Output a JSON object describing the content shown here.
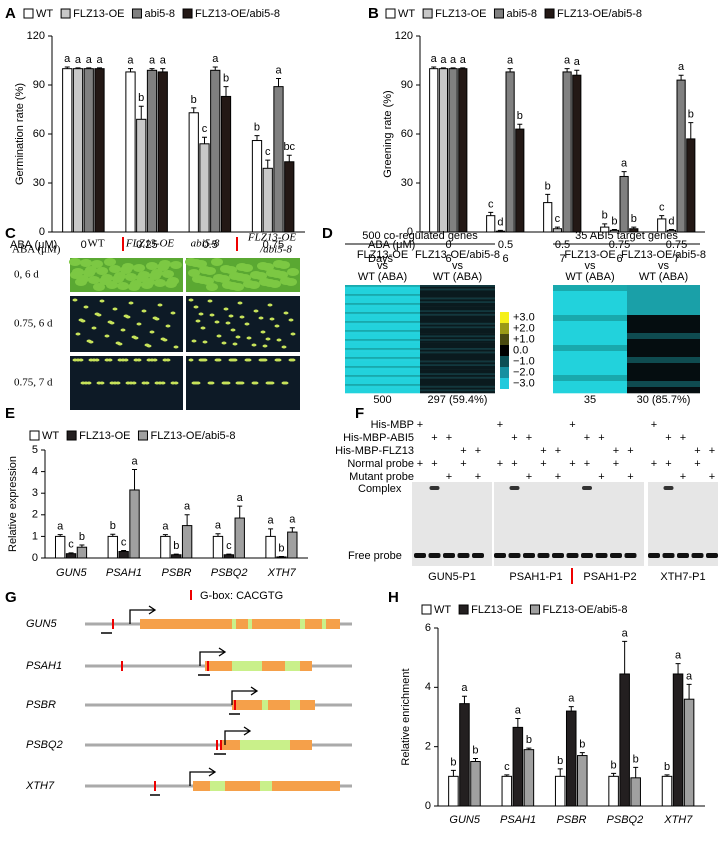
{
  "chart_data": [
    {
      "panel": "A",
      "type": "bar",
      "ylabel": "Germination rate (%)",
      "xlabel": "ABA (μM)",
      "categories": [
        "0",
        "0.25",
        "0.5",
        "0.75"
      ],
      "ylim": [
        0,
        120
      ],
      "yticks": [
        0,
        30,
        60,
        90,
        120
      ],
      "series": [
        {
          "name": "WT",
          "color": "#ffffff",
          "values": [
            100,
            98,
            73,
            56
          ],
          "errors": [
            1,
            2,
            3,
            3
          ],
          "letters": [
            "a",
            "a",
            "b",
            "b"
          ]
        },
        {
          "name": "FLZ13-OE",
          "color": "#c8c8c8",
          "values": [
            100,
            69,
            54,
            39
          ],
          "errors": [
            0.5,
            8,
            4,
            5
          ],
          "letters": [
            "a",
            "b",
            "c",
            "c"
          ]
        },
        {
          "name": "abi5-8",
          "color": "#808080",
          "values": [
            100,
            99,
            99,
            89
          ],
          "errors": [
            0.5,
            1,
            2,
            5
          ],
          "letters": [
            "a",
            "a",
            "a",
            "a"
          ]
        },
        {
          "name": "FLZ13-OE/abi5-8",
          "color": "#231815",
          "values": [
            100,
            98,
            83,
            43
          ],
          "errors": [
            0.5,
            2,
            6,
            4
          ],
          "letters": [
            "a",
            "a",
            "b",
            "bc"
          ]
        }
      ]
    },
    {
      "panel": "B",
      "type": "bar",
      "ylabel": "Greening rate (%)",
      "xlabel": "ABA (μM)",
      "xlabel2": "Days",
      "categories": [
        "0",
        "0.5",
        "0.5",
        "0.75",
        "0.75"
      ],
      "categories2": [
        "6",
        "6",
        "7",
        "6",
        "7"
      ],
      "ylim": [
        0,
        120
      ],
      "yticks": [
        0,
        30,
        60,
        90,
        120
      ],
      "series": [
        {
          "name": "WT",
          "color": "#ffffff",
          "values": [
            100,
            10,
            18,
            3,
            8
          ],
          "errors": [
            1,
            2,
            5,
            2,
            2
          ],
          "letters": [
            "a",
            "c",
            "b",
            "b",
            "c"
          ]
        },
        {
          "name": "FLZ13-OE",
          "color": "#c8c8c8",
          "values": [
            100,
            0.5,
            2,
            1,
            1
          ],
          "errors": [
            0.5,
            0.5,
            1,
            0.5,
            0.5
          ],
          "letters": [
            "a",
            "d",
            "c",
            "b",
            "d"
          ]
        },
        {
          "name": "abi5-8",
          "color": "#808080",
          "values": [
            100,
            98,
            98,
            34,
            93
          ],
          "errors": [
            0.5,
            2,
            2,
            3,
            3
          ],
          "letters": [
            "a",
            "a",
            "a",
            "a",
            "a"
          ]
        },
        {
          "name": "FLZ13-OE/abi5-8",
          "color": "#231815",
          "values": [
            100,
            63,
            96,
            2,
            57
          ],
          "errors": [
            0.5,
            3,
            3,
            1,
            10
          ],
          "letters": [
            "a",
            "b",
            "a",
            "b",
            "b"
          ]
        }
      ]
    },
    {
      "panel": "E",
      "type": "bar",
      "ylabel": "Relative expression",
      "categories": [
        "GUN5",
        "PSAH1",
        "PSBR",
        "PSBQ2",
        "XTH7"
      ],
      "ylim": [
        0,
        5
      ],
      "yticks": [
        0,
        1,
        2,
        3,
        4,
        5
      ],
      "series": [
        {
          "name": "WT",
          "color": "#ffffff",
          "values": [
            1.0,
            1.0,
            1.0,
            1.0,
            1.0
          ],
          "errors": [
            0.08,
            0.1,
            0.08,
            0.12,
            0.35
          ],
          "letters": [
            "a",
            "b",
            "a",
            "a",
            "a"
          ]
        },
        {
          "name": "FLZ13-OE",
          "color": "#231f20",
          "values": [
            0.2,
            0.3,
            0.15,
            0.15,
            0.05
          ],
          "errors": [
            0.04,
            0.05,
            0.03,
            0.03,
            0.02
          ],
          "letters": [
            "c",
            "c",
            "b",
            "c",
            "b"
          ]
        },
        {
          "name": "FLZ13-OE/abi5-8",
          "color": "#a0a0a0",
          "values": [
            0.5,
            3.15,
            1.5,
            1.85,
            1.2
          ],
          "errors": [
            0.1,
            0.95,
            0.5,
            0.55,
            0.2
          ],
          "letters": [
            "b",
            "a",
            "a",
            "a",
            "a"
          ]
        }
      ]
    },
    {
      "panel": "H",
      "type": "bar",
      "ylabel": "Relative enrichment",
      "categories": [
        "GUN5",
        "PSAH1",
        "PSBR",
        "PSBQ2",
        "XTH7"
      ],
      "ylim": [
        0,
        6
      ],
      "yticks": [
        0,
        2,
        4,
        6
      ],
      "series": [
        {
          "name": "WT",
          "color": "#ffffff",
          "values": [
            1.0,
            1.0,
            1.0,
            1.0,
            1.0
          ],
          "errors": [
            0.2,
            0.05,
            0.25,
            0.1,
            0.05
          ],
          "letters": [
            "b",
            "c",
            "b",
            "b",
            "b"
          ]
        },
        {
          "name": "FLZ13-OE",
          "color": "#231f20",
          "values": [
            3.45,
            2.65,
            3.2,
            4.45,
            4.45
          ],
          "errors": [
            0.25,
            0.3,
            0.15,
            1.1,
            0.35
          ],
          "letters": [
            "a",
            "a",
            "a",
            "a",
            "a"
          ]
        },
        {
          "name": "FLZ13-OE/abi5-8",
          "color": "#a0a0a0",
          "values": [
            1.5,
            1.9,
            1.7,
            0.95,
            3.6
          ],
          "errors": [
            0.1,
            0.05,
            0.1,
            0.35,
            0.5
          ],
          "letters": [
            "b",
            "b",
            "b",
            "b",
            "a"
          ]
        }
      ]
    }
  ],
  "panel_c": {
    "label": "C",
    "aba": "ABA (μM)",
    "columns": [
      "WT",
      "FLZ13-OE",
      "abi5-8",
      "FLZ13-OE",
      "/abi5-8"
    ],
    "rows": [
      "0, 6 d",
      "0.75, 6 d",
      "0.75, 7 d"
    ]
  },
  "panel_d": {
    "label": "D",
    "groups": [
      {
        "title": "500 co-regulated genes",
        "columns": [
          [
            "FLZ13-OE",
            "vs",
            "WT (ABA)"
          ],
          [
            "FLZ13-OE/abi5-8",
            "vs",
            "WT (ABA)"
          ]
        ],
        "counts": [
          "500",
          "297 (59.4%)"
        ]
      },
      {
        "title": "35 ABI5 target genes",
        "columns": [
          [
            "FLZ13-OE",
            "vs",
            "WT (ABA)"
          ],
          [
            "FLZ13-OE/abi5-8",
            "vs",
            "WT (ABA)"
          ]
        ],
        "counts": [
          "35",
          "30 (85.7%)"
        ]
      }
    ],
    "scale": [
      "+3.0",
      "+2.0",
      "+1.0",
      "0.0",
      "−1.0",
      "−2.0",
      "−3.0"
    ]
  },
  "panel_f": {
    "label": "F",
    "rows": [
      {
        "label": "His-MBP",
        "lanes": [
          "+",
          null,
          null,
          null,
          null,
          "+",
          null,
          null,
          null,
          null,
          "+",
          null,
          null,
          null,
          null,
          "+",
          null,
          null,
          null,
          null
        ]
      },
      {
        "label": "His-MBP-ABI5",
        "lanes": [
          null,
          "+",
          "+",
          null,
          null,
          null,
          "+",
          "+",
          null,
          null,
          null,
          "+",
          "+",
          null,
          null,
          null,
          "+",
          "+",
          null,
          null
        ]
      },
      {
        "label": "His-MBP-FLZ13",
        "lanes": [
          null,
          null,
          null,
          "+",
          "+",
          null,
          null,
          null,
          "+",
          "+",
          null,
          null,
          null,
          "+",
          "+",
          null,
          null,
          null,
          "+",
          "+"
        ]
      },
      {
        "label": "Normal probe",
        "lanes": [
          "+",
          "+",
          null,
          "+",
          null,
          "+",
          "+",
          null,
          "+",
          null,
          "+",
          "+",
          null,
          "+",
          null,
          "+",
          "+",
          null,
          "+",
          null
        ]
      },
      {
        "label": "Mutant probe",
        "lanes": [
          null,
          null,
          "+",
          null,
          "+",
          null,
          null,
          "+",
          null,
          "+",
          null,
          null,
          "+",
          null,
          "+",
          null,
          null,
          "+",
          null,
          "+"
        ]
      }
    ],
    "complex": "Complex",
    "free_probe": "Free probe",
    "probes": [
      "GUN5-P1",
      "PSAH1-P1",
      "PSAH1-P2",
      "XTH7-P1"
    ]
  },
  "panel_g": {
    "label": "G",
    "legend": "G-box: CACGTG",
    "genes": [
      "GUN5",
      "PSAH1",
      "PSBR",
      "PSBQ2",
      "XTH7"
    ]
  }
}
